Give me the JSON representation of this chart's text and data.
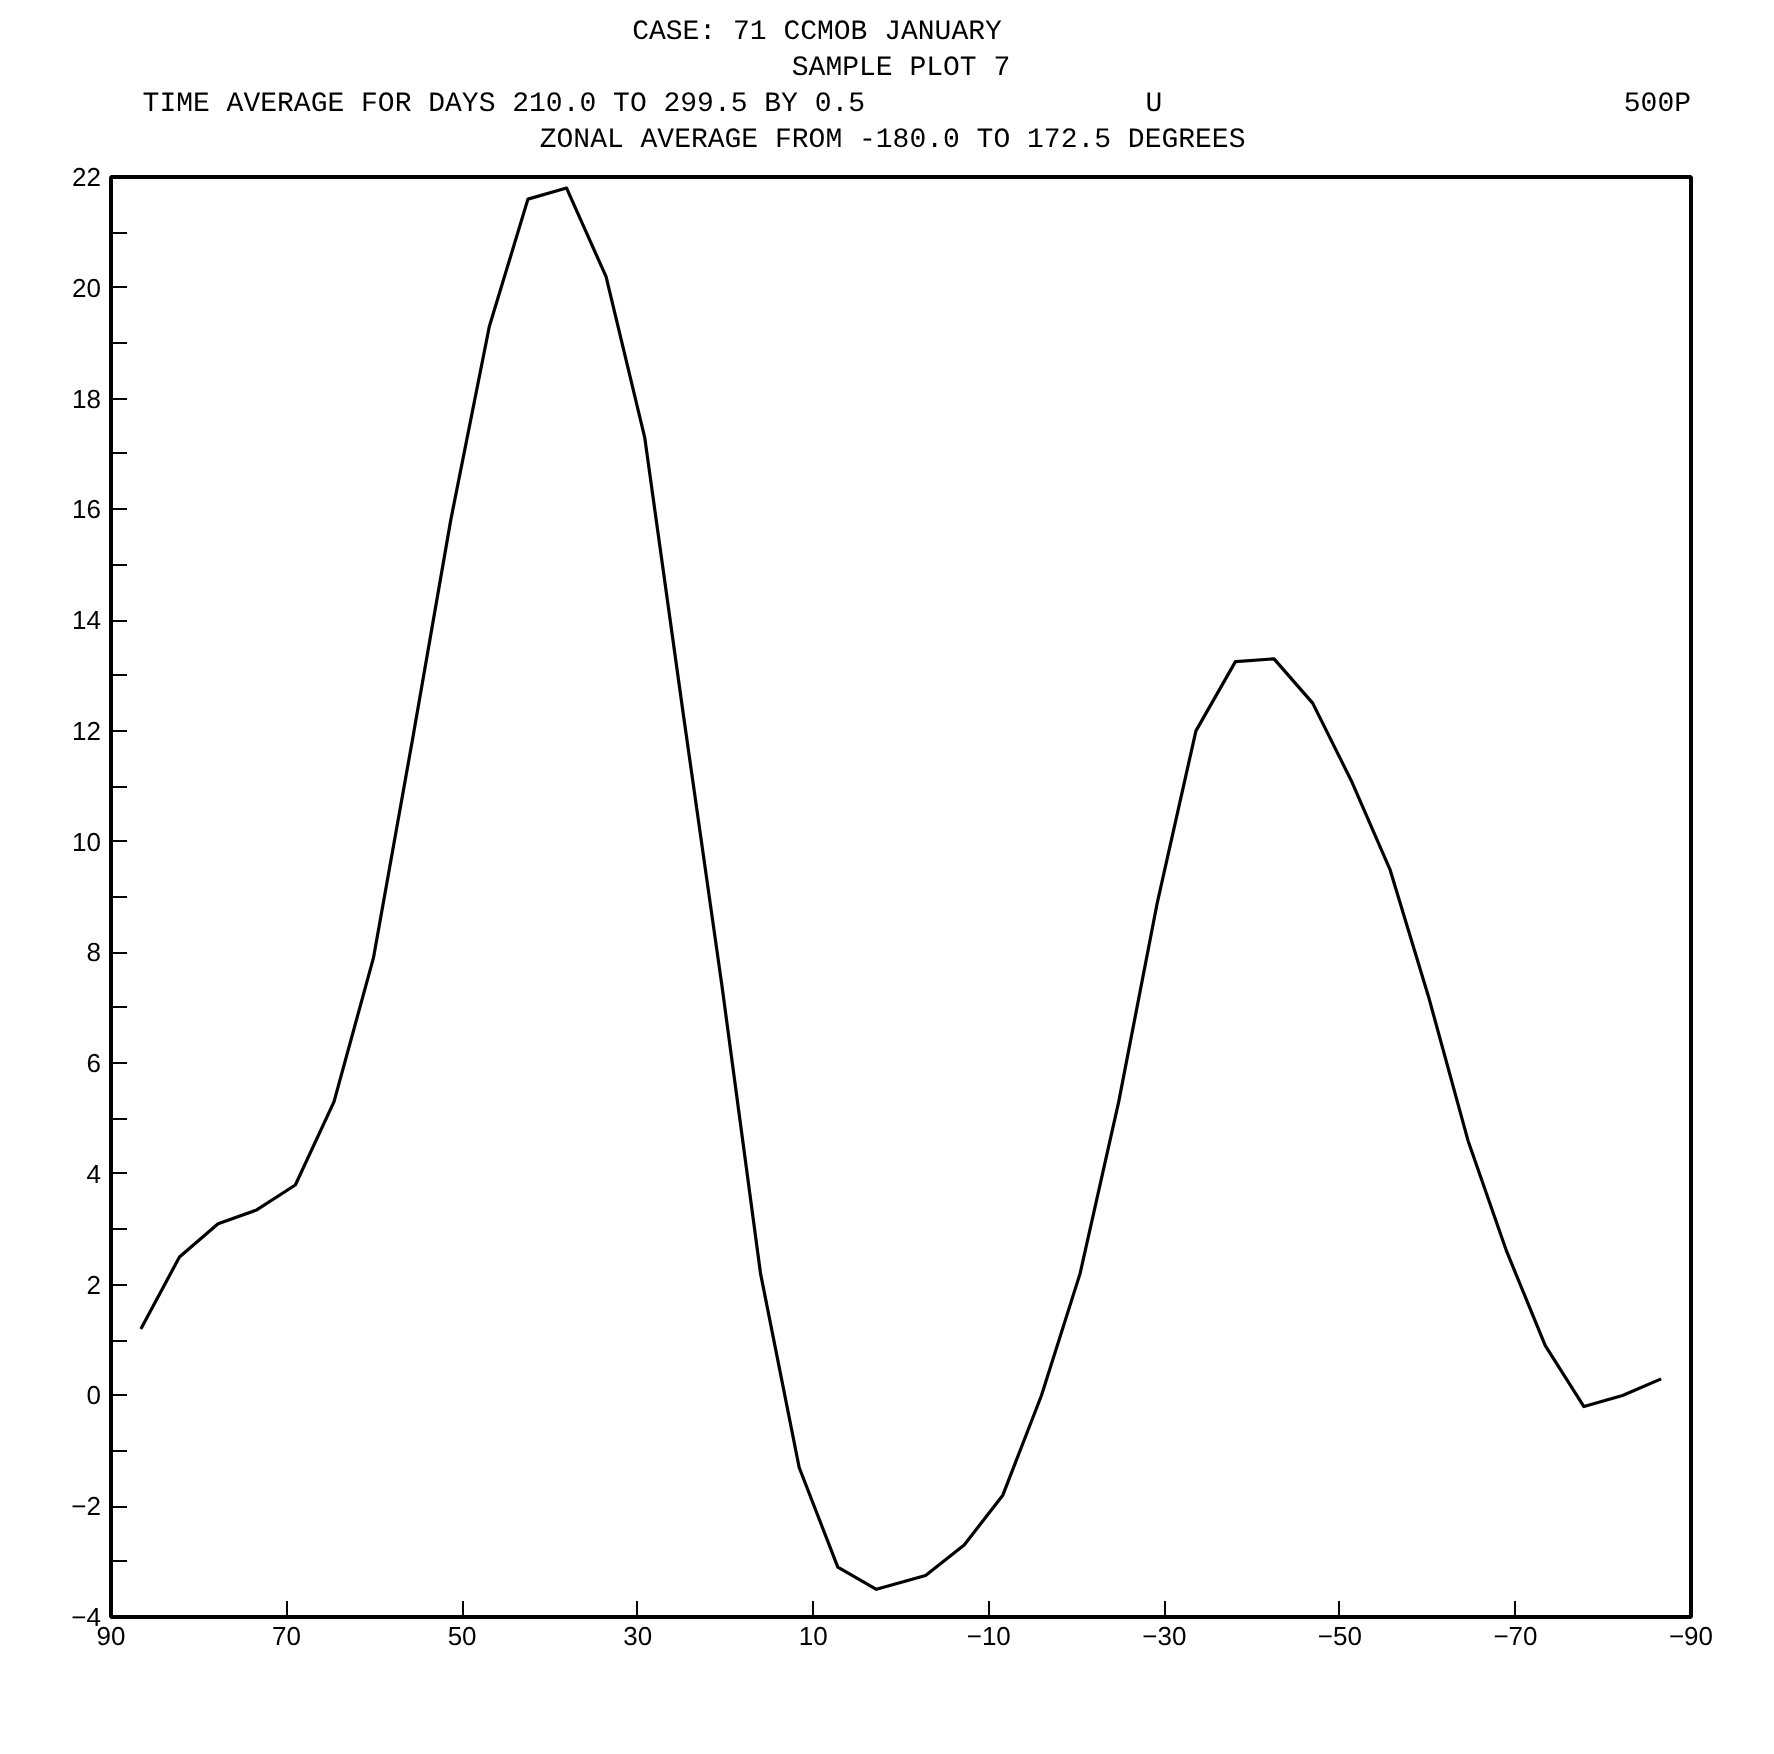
{
  "chart_data": {
    "type": "line",
    "title": "CASE:  71          CCMOB JANUARY",
    "subtitle": "SAMPLE PLOT 7",
    "annotations": [
      "TIME AVERAGE FOR DAYS  210.0 TO  299.5 BY   0.5",
      "U",
      "500P",
      "ZONAL AVERAGE FROM -180.0 TO  172.5 DEGREES"
    ],
    "x": [
      86.6,
      82.2,
      77.8,
      73.4,
      69.0,
      64.6,
      60.1,
      55.7,
      51.3,
      46.9,
      42.5,
      38.1,
      33.6,
      29.2,
      24.8,
      20.4,
      16.0,
      11.6,
      7.2,
      2.8,
      -2.8,
      -7.2,
      -11.6,
      -16.0,
      -20.4,
      -24.8,
      -29.2,
      -33.6,
      -38.1,
      -42.5,
      -46.9,
      -51.3,
      -55.7,
      -60.1,
      -64.6,
      -69.0,
      -73.4,
      -77.8,
      -82.2,
      -86.6
    ],
    "series": [
      {
        "color": "#000000",
        "values": [
          1.2,
          2.5,
          3.1,
          3.35,
          3.8,
          5.3,
          7.9,
          11.8,
          15.8,
          19.3,
          21.6,
          21.8,
          20.2,
          17.3,
          12.3,
          7.4,
          2.2,
          -1.3,
          -3.1,
          -3.5,
          -3.25,
          -2.7,
          -1.8,
          0.0,
          2.2,
          5.3,
          8.9,
          12.0,
          13.25,
          13.3,
          12.5,
          11.1,
          9.5,
          7.2,
          4.6,
          2.6,
          0.9,
          -0.2,
          0.0,
          0.3
        ]
      }
    ],
    "xlim": [
      90,
      -90
    ],
    "xticks": [
      90,
      70,
      50,
      30,
      10,
      -10,
      -30,
      -50,
      -70,
      -90
    ],
    "ylim": [
      -4,
      22
    ],
    "yticks": [
      -4,
      {
        "value": -3,
        "label": null
      },
      -2,
      {
        "value": -1,
        "label": null
      },
      0,
      {
        "value": 1,
        "label": null
      },
      2,
      {
        "value": 3,
        "label": null
      },
      4,
      {
        "value": 5,
        "label": null
      },
      6,
      {
        "value": 7,
        "label": null
      },
      8,
      {
        "value": 9,
        "label": null
      },
      10,
      {
        "value": 11,
        "label": null
      },
      12,
      {
        "value": 13,
        "label": null
      },
      14,
      {
        "value": 15,
        "label": null
      },
      16,
      {
        "value": 17,
        "label": null
      },
      18,
      {
        "value": 19,
        "label": null
      },
      20,
      {
        "value": 21,
        "label": null
      },
      22
    ],
    "grid": false,
    "marker": "none",
    "line_style": "solid"
  }
}
